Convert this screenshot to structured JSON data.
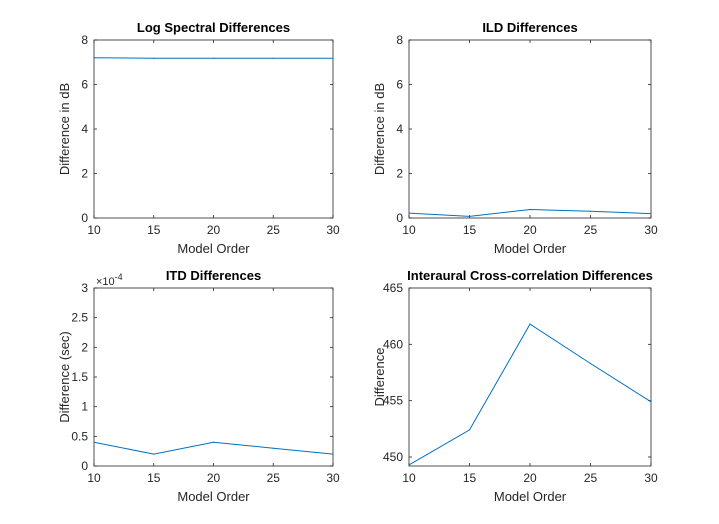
{
  "chart_data": [
    {
      "type": "line",
      "title": "Log Spectral Differences",
      "xlabel": "Model Order",
      "ylabel": "Difference in dB",
      "xlim": [
        10,
        30
      ],
      "ylim": [
        0,
        8
      ],
      "xticks": [
        "10",
        "15",
        "20",
        "25",
        "30"
      ],
      "yticks": [
        "0",
        "2",
        "4",
        "6",
        "8"
      ],
      "exponent_label": "",
      "grid": false,
      "color": "#0072bd",
      "x": [
        10,
        15,
        20,
        25,
        30
      ],
      "y": [
        7.2,
        7.18,
        7.18,
        7.18,
        7.18
      ]
    },
    {
      "type": "line",
      "title": "ILD Differences",
      "xlabel": "Model Order",
      "ylabel": "Difference in dB",
      "xlim": [
        10,
        30
      ],
      "ylim": [
        0,
        8
      ],
      "xticks": [
        "10",
        "15",
        "20",
        "25",
        "30"
      ],
      "yticks": [
        "0",
        "2",
        "4",
        "6",
        "8"
      ],
      "exponent_label": "",
      "grid": false,
      "color": "#0072bd",
      "x": [
        10,
        15,
        20,
        25,
        30
      ],
      "y": [
        0.22,
        0.07,
        0.38,
        0.3,
        0.2
      ]
    },
    {
      "type": "line",
      "title": "ITD Differences",
      "xlabel": "Model Order",
      "ylabel": "Difference (sec)",
      "xlim": [
        10,
        30
      ],
      "ylim": [
        0,
        0.0003
      ],
      "xticks": [
        "10",
        "15",
        "20",
        "25",
        "30"
      ],
      "yticks": [
        "0",
        "0.5",
        "1",
        "1.5",
        "2",
        "2.5",
        "3"
      ],
      "exponent_label": "×10",
      "exponent_power": "-4",
      "grid": false,
      "color": "#0072bd",
      "x": [
        10,
        15,
        20,
        25,
        30
      ],
      "y": [
        4e-05,
        2e-05,
        4e-05,
        3e-05,
        2e-05
      ]
    },
    {
      "type": "line",
      "title": "Interaural Cross-correlation Differences",
      "xlabel": "Model Order",
      "ylabel": "Difference",
      "xlim": [
        10,
        30
      ],
      "ylim": [
        449.2,
        465
      ],
      "xticks": [
        "10",
        "15",
        "20",
        "25",
        "30"
      ],
      "yticks": [
        "450",
        "455",
        "460",
        "465"
      ],
      "exponent_label": "",
      "grid": false,
      "color": "#0072bd",
      "x": [
        10,
        15,
        20,
        25,
        30
      ],
      "y": [
        449.3,
        452.4,
        461.8,
        458.3,
        454.9
      ]
    }
  ]
}
